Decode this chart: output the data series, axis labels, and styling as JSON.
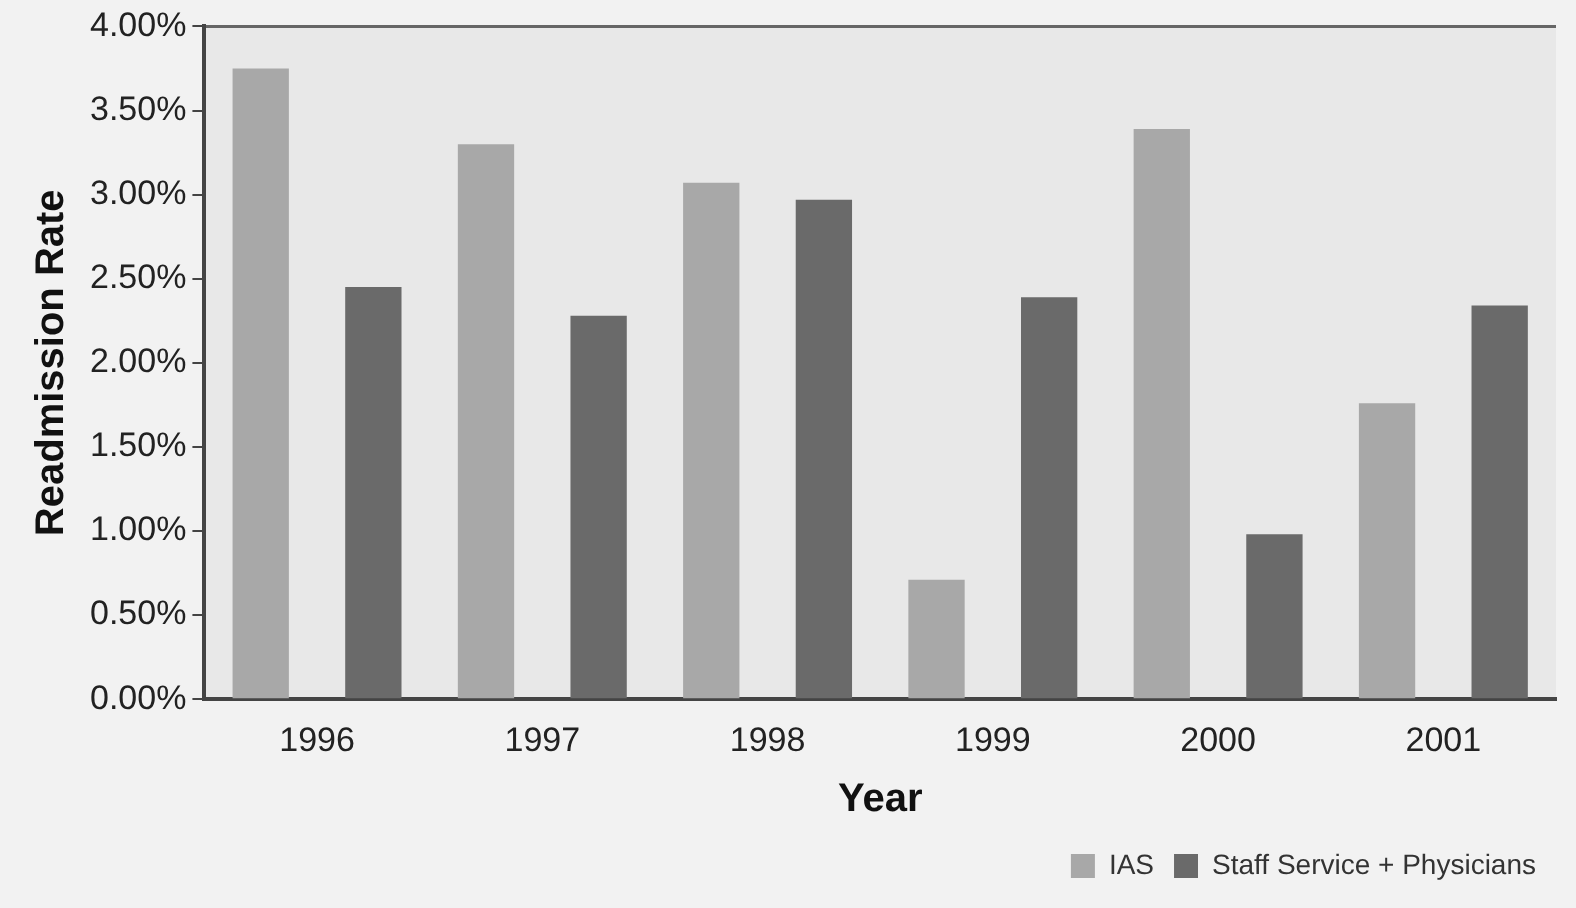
{
  "chart_data": {
    "type": "bar",
    "xlabel": "Year",
    "ylabel": "Readmission Rate",
    "categories": [
      "1996",
      "1997",
      "1998",
      "1999",
      "2000",
      "2001"
    ],
    "series": [
      {
        "name": "IAS",
        "color": "#a8a8a8",
        "values": [
          3.75,
          3.3,
          3.07,
          0.71,
          3.39,
          1.76
        ]
      },
      {
        "name": "Staff Service + Physicians",
        "color": "#6a6a6a",
        "values": [
          2.45,
          2.28,
          2.97,
          2.39,
          0.98,
          2.34
        ]
      }
    ],
    "ylim": [
      0,
      4
    ],
    "yticks": [
      {
        "value": 0,
        "label": "0.00%"
      },
      {
        "value": 0.5,
        "label": "0.50%"
      },
      {
        "value": 1,
        "label": "1.00%"
      },
      {
        "value": 1.5,
        "label": "1.50%"
      },
      {
        "value": 2,
        "label": "2.00%"
      },
      {
        "value": 2.5,
        "label": "2.50%"
      },
      {
        "value": 3,
        "label": "3.00%"
      },
      {
        "value": 3.5,
        "label": "3.50%"
      },
      {
        "value": 4,
        "label": "4.00%"
      }
    ],
    "grid": false,
    "legend": "bottom right"
  }
}
